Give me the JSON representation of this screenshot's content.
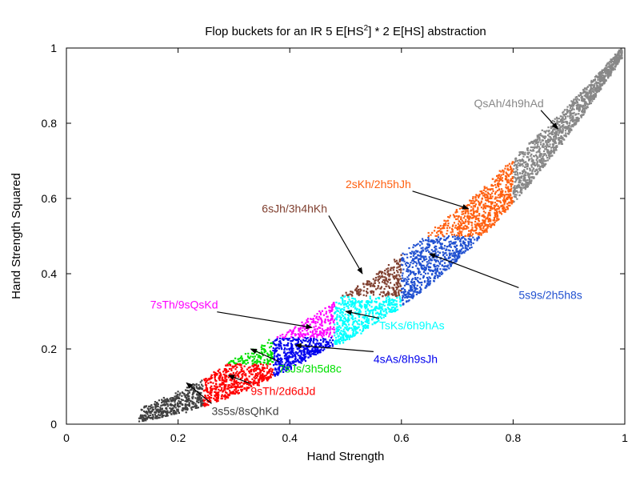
{
  "chart_data": {
    "type": "scatter",
    "title_main": "Flop buckets for an IR 5 E[HS",
    "title_sup": "2",
    "title_tail": "] * 2 E[HS] abstraction",
    "xlabel": "Hand Strength",
    "ylabel": "Hand Strength Squared",
    "xlim": [
      0,
      1
    ],
    "ylim": [
      0,
      1
    ],
    "xticks": [
      "0",
      "0.2",
      "0.4",
      "0.6",
      "0.8",
      "1"
    ],
    "yticks": [
      "0",
      "0.2",
      "0.4",
      "0.6",
      "0.8",
      "1"
    ],
    "xtick_values": [
      0,
      0.2,
      0.4,
      0.6,
      0.8,
      1
    ],
    "ytick_values": [
      0,
      0.2,
      0.4,
      0.6,
      0.8,
      1
    ],
    "buckets": [
      {
        "name": "3s5s/8sQhKd",
        "color": "#404040",
        "hs_range": [
          0.13,
          0.245
        ],
        "hs2_range": [
          0,
          1
        ],
        "annotation": {
          "text": "3s5s/8sQhKd",
          "text_at": [
            0.26,
            0.025
          ],
          "arrow_to": [
            0.215,
            0.11
          ]
        }
      },
      {
        "name": "9sTh/2d6dJd",
        "color": "#ff0000",
        "hs_range": [
          0.245,
          0.37
        ],
        "hs2_range": [
          0,
          0.16
        ],
        "annotation": {
          "text": "9sTh/2d6dJd",
          "text_at": [
            0.33,
            0.078
          ],
          "arrow_to": [
            0.29,
            0.13
          ]
        }
      },
      {
        "name": "7sJs/3h5d8c",
        "color": "#00e000",
        "hs_range": [
          0.245,
          0.37
        ],
        "hs2_range": [
          0.16,
          1
        ],
        "annotation": {
          "text": "7sJs/3h5d8c",
          "text_at": [
            0.38,
            0.137
          ],
          "arrow_to": [
            0.33,
            0.2
          ]
        }
      },
      {
        "name": "4sAs/8h9sJh",
        "color": "#0000ee",
        "hs_range": [
          0.37,
          0.48
        ],
        "hs2_range": [
          0,
          0.23
        ],
        "annotation": {
          "text": "4sAs/8h9sJh",
          "text_at": [
            0.55,
            0.163
          ],
          "arrow_to": [
            0.41,
            0.21
          ]
        }
      },
      {
        "name": "7sTh/9sQsKd",
        "color": "#ff00ff",
        "hs_range": [
          0.37,
          0.48
        ],
        "hs2_range": [
          0.23,
          1
        ],
        "annotation": {
          "text": "7sTh/9sQsKd",
          "text_at": [
            0.15,
            0.307
          ],
          "arrow_to": [
            0.44,
            0.257
          ]
        }
      },
      {
        "name": "TsKs/6h9hAs",
        "color": "#00ffff",
        "hs_range": [
          0.48,
          0.6
        ],
        "hs2_range": [
          0,
          0.34
        ],
        "annotation": {
          "text": "TsKs/6h9hAs",
          "text_at": [
            0.56,
            0.252
          ],
          "arrow_to": [
            0.5,
            0.3
          ]
        }
      },
      {
        "name": "6sJh/3h4hKh",
        "color": "#804030",
        "hs_range": [
          0.38,
          0.6
        ],
        "hs2_range": [
          0.34,
          1
        ],
        "annotation": {
          "text": "6sJh/3h4hKh",
          "text_at": [
            0.35,
            0.563
          ],
          "arrow_to": [
            0.53,
            0.4
          ]
        }
      },
      {
        "name": "5s9s/2h5h8s",
        "color": "#2050d0",
        "hs_range": [
          0.6,
          0.8
        ],
        "hs2_range": [
          0,
          0.5
        ],
        "annotation": {
          "text": "5s9s/2h5h8s",
          "text_at": [
            0.81,
            0.333
          ],
          "arrow_to": [
            0.65,
            0.453
          ]
        }
      },
      {
        "name": "2sKh/2h5hJh",
        "color": "#ff6010",
        "hs_range": [
          0.6,
          0.8
        ],
        "hs2_range": [
          0.5,
          1
        ],
        "annotation": {
          "text": "2sKh/2h5hJh",
          "text_at": [
            0.5,
            0.628
          ],
          "arrow_to": [
            0.72,
            0.573
          ]
        }
      },
      {
        "name": "QsAh/4h9hAd",
        "color": "#888888",
        "hs_range": [
          0.8,
          1.0
        ],
        "hs2_range": [
          0,
          1
        ],
        "annotation": {
          "text": "QsAh/4h9hAd",
          "text_at": [
            0.73,
            0.843
          ],
          "arrow_to": [
            0.88,
            0.785
          ]
        }
      }
    ]
  }
}
